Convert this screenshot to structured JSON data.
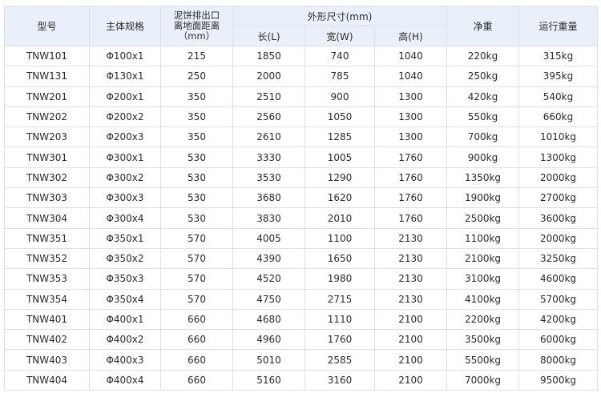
{
  "table": {
    "headers": {
      "model": "型号",
      "spec": "主体规格",
      "outlet_height": "泥饼排出口\n离地面距离\n（mm）",
      "dimensions": "外形尺寸(mm)",
      "length": "长(L)",
      "width": "宽(W)",
      "height": "高(H)",
      "net_weight": "净重",
      "operating_weight": "运行重量"
    },
    "rows": [
      [
        "TNW101",
        "Φ100x1",
        "215",
        "1850",
        "740",
        "1040",
        "220kg",
        "315kg"
      ],
      [
        "TNW131",
        "Φ130x1",
        "250",
        "2000",
        "785",
        "1040",
        "250kg",
        "395kg"
      ],
      [
        "TNW201",
        "Φ200x1",
        "350",
        "2510",
        "900",
        "1300",
        "420kg",
        "540kg"
      ],
      [
        "TNW202",
        "Φ200x2",
        "350",
        "2560",
        "1050",
        "1300",
        "550kg",
        "660kg"
      ],
      [
        "TNW203",
        "Φ200x3",
        "350",
        "2610",
        "1285",
        "1300",
        "700kg",
        "1010kg"
      ],
      [
        "TNW301",
        "Φ300x1",
        "530",
        "3330",
        "1005",
        "1760",
        "900kg",
        "1300kg"
      ],
      [
        "TNW302",
        "Φ300x2",
        "530",
        "3530",
        "1290",
        "1760",
        "1350kg",
        "2000kg"
      ],
      [
        "TNW303",
        "Φ300x3",
        "530",
        "3680",
        "1620",
        "1760",
        "1900kg",
        "2700kg"
      ],
      [
        "TNW304",
        "Φ300x4",
        "530",
        "3830",
        "2010",
        "1760",
        "2500kg",
        "3600kg"
      ],
      [
        "TNW351",
        "Φ350x1",
        "570",
        "4005",
        "1100",
        "2130",
        "1100kg",
        "2000kg"
      ],
      [
        "TNW352",
        "Φ350x2",
        "570",
        "4390",
        "1650",
        "2130",
        "2100kg",
        "3250kg"
      ],
      [
        "TNW353",
        "Φ350x3",
        "570",
        "4520",
        "1980",
        "2130",
        "3100kg",
        "4600kg"
      ],
      [
        "TNW354",
        "Φ350x4",
        "570",
        "4750",
        "2715",
        "2130",
        "4100kg",
        "5700kg"
      ],
      [
        "TNW401",
        "Φ400x1",
        "660",
        "4680",
        "1110",
        "2100",
        "2200kg",
        "4200kg"
      ],
      [
        "TNW402",
        "Φ400x2",
        "660",
        "4960",
        "1760",
        "2100",
        "3500kg",
        "6000kg"
      ],
      [
        "TNW403",
        "Φ400x3",
        "660",
        "5010",
        "2585",
        "2100",
        "5500kg",
        "8000kg"
      ],
      [
        "TNW404",
        "Φ400x4",
        "660",
        "5160",
        "3160",
        "2100",
        "7000kg",
        "9500kg"
      ]
    ]
  },
  "colors": {
    "header_bg": "#eaf0f9",
    "border": "#dcdfe4",
    "text": "#2b2b2b"
  }
}
